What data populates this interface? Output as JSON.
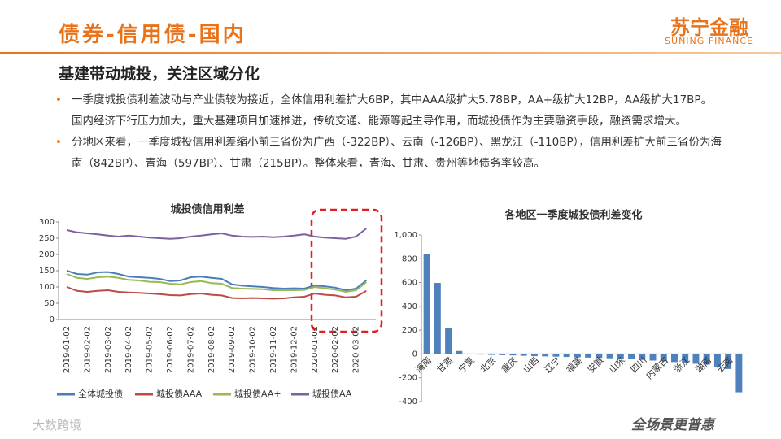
{
  "header": {
    "title": "债券-信用债-国内",
    "logo": "苏宁金融",
    "logo_sub": "SUNING FINANCE"
  },
  "subtitle": "基建带动城投，关注区域分化",
  "bullets": [
    "一季度城投债利差波动与产业债较为接近，全体信用利差扩大6BP，其中AAA级扩大5.78BP，AA+级扩大12BP，AA级扩大17BP。国内经济下行压力加大，重大基建项目加速推进，传统交通、能源等起主导作用，而城投债作为主要融资手段，融资需求增大。",
    "分地区来看，一季度城投信用利差缩小前三省份为广西（-322BP）、云南（-126BP）、黑龙江（-110BP），信用利差扩大前三省份为海南（842BP）、青海（597BP）、甘肃（215BP）。整体来看，青海、甘肃、贵州等地债务率较高。"
  ],
  "footer": {
    "watermark": "大数跨境",
    "slogan": "全场景更普惠"
  },
  "chart_data": [
    {
      "type": "line",
      "title": "城投债信用利差",
      "categories": [
        "2019-01-02",
        null,
        "2019-02-02",
        null,
        "2019-03-02",
        null,
        "2019-04-02",
        null,
        "2019-05-02",
        null,
        "2019-06-02",
        null,
        "2019-07-02",
        null,
        "2019-08-02",
        null,
        "2019-09-02",
        null,
        "2019-10-02",
        null,
        "2019-11-02",
        null,
        "2019-12-02",
        null,
        "2020-01-02",
        null,
        "2020-02-02",
        null,
        "2020-03-02",
        null
      ],
      "series": [
        {
          "name": "全体城投债",
          "color": "#4a7ebb",
          "values": [
            150,
            140,
            138,
            145,
            146,
            140,
            132,
            130,
            128,
            125,
            118,
            120,
            130,
            132,
            128,
            125,
            108,
            104,
            102,
            100,
            97,
            95,
            96,
            95,
            105,
            102,
            98,
            90,
            95,
            120
          ]
        },
        {
          "name": "城投债AAA",
          "color": "#be4b48",
          "values": [
            100,
            88,
            85,
            88,
            90,
            85,
            83,
            82,
            80,
            78,
            75,
            74,
            78,
            80,
            76,
            74,
            66,
            65,
            66,
            65,
            64,
            65,
            68,
            70,
            80,
            76,
            74,
            68,
            70,
            88
          ]
        },
        {
          "name": "城投债AA+",
          "color": "#98b954",
          "values": [
            140,
            128,
            125,
            130,
            132,
            128,
            122,
            120,
            116,
            115,
            110,
            108,
            115,
            118,
            112,
            110,
            97,
            95,
            94,
            93,
            90,
            90,
            90,
            91,
            100,
            96,
            92,
            85,
            90,
            115
          ]
        },
        {
          "name": "城投债AA",
          "color": "#7d60a0",
          "values": [
            275,
            268,
            265,
            262,
            258,
            255,
            258,
            255,
            252,
            250,
            248,
            250,
            255,
            258,
            262,
            265,
            258,
            255,
            254,
            255,
            253,
            255,
            258,
            262,
            255,
            252,
            250,
            248,
            255,
            280
          ]
        }
      ],
      "ylim": [
        0,
        300
      ],
      "yticks": [
        0,
        50,
        100,
        150,
        200,
        250,
        300
      ],
      "grid": false,
      "legend": "bottom"
    },
    {
      "type": "bar",
      "title": "各地区一季度城投债利差变化",
      "color": "#4f81bd",
      "categories": [
        "海南",
        null,
        "甘肃",
        null,
        "宁夏",
        null,
        "北京",
        null,
        "重庆",
        null,
        "山西",
        null,
        "辽宁",
        null,
        "福建",
        null,
        "安徽",
        null,
        "山东",
        null,
        "四川",
        null,
        "内蒙古",
        null,
        "浙江",
        null,
        "湖南",
        null,
        "云南",
        null
      ],
      "values": [
        842,
        597,
        215,
        25,
        3,
        -5,
        -8,
        -10,
        -12,
        -15,
        -18,
        -20,
        -22,
        -25,
        -28,
        -30,
        -33,
        -36,
        -40,
        -45,
        -50,
        -55,
        -60,
        -68,
        -75,
        -82,
        -90,
        -110,
        -126,
        -322
      ],
      "ylim": [
        -400,
        1000
      ],
      "yticks": [
        -400,
        -200,
        0,
        200,
        400,
        600,
        800,
        {
          "value": 1000,
          "label": "1,000"
        }
      ],
      "grid": false
    }
  ]
}
